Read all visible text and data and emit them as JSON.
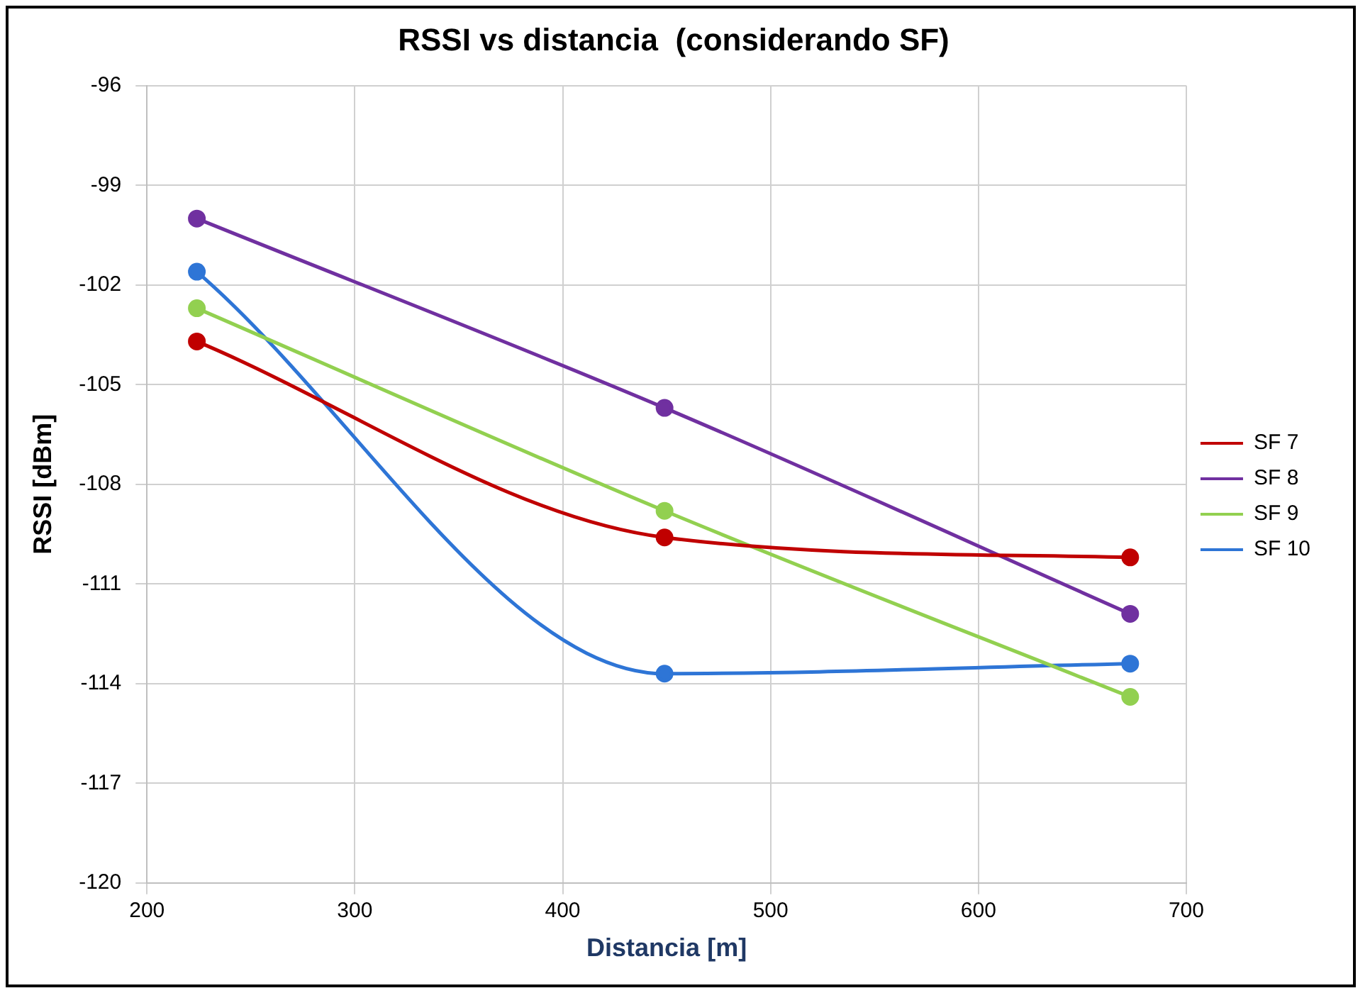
{
  "chart_data": {
    "type": "line",
    "title": "RSSI vs distancia  (considerando SF)",
    "xlabel": "Distancia [m]",
    "ylabel": "RSSI [dBm]",
    "x": [
      224,
      449,
      673
    ],
    "series": [
      {
        "name": "SF 7",
        "color": "#c00000",
        "values": [
          -103.7,
          -109.6,
          -110.2
        ]
      },
      {
        "name": "SF 8",
        "color": "#7030a0",
        "values": [
          -100.0,
          -105.7,
          -111.9
        ]
      },
      {
        "name": "SF 9",
        "color": "#92d050",
        "values": [
          -102.7,
          -108.8,
          -114.4
        ]
      },
      {
        "name": "SF 10",
        "color": "#2e75d6",
        "values": [
          -101.6,
          -113.7,
          -113.4
        ]
      }
    ],
    "xlim": [
      200,
      700
    ],
    "xticks": [
      200,
      300,
      400,
      500,
      600,
      700
    ],
    "ylim": [
      -120,
      -96
    ],
    "yticks": [
      -120,
      -117,
      -114,
      -111,
      -108,
      -105,
      -102,
      -99,
      -96
    ],
    "grid": true,
    "legend": "right",
    "marker": "circle",
    "line_style": "solid"
  }
}
